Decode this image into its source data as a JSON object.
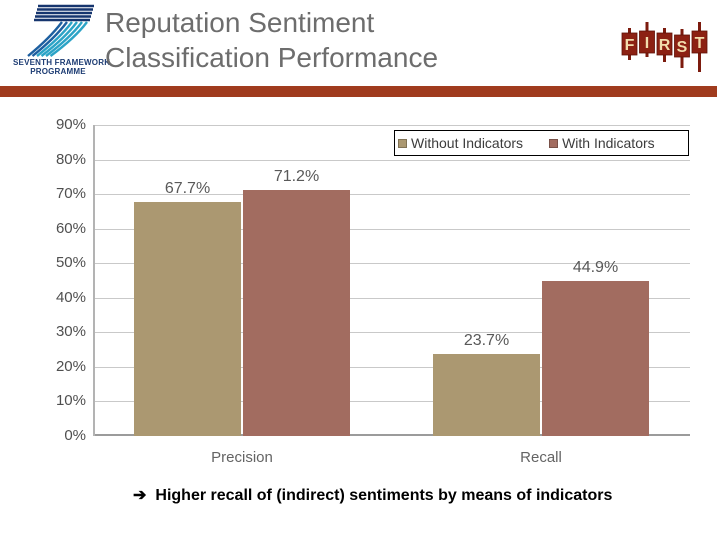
{
  "header": {
    "fp7_logo": {
      "caption_line1": "SEVENTH FRAMEWORK",
      "caption_line2": "PROGRAMME"
    },
    "title_line1": "Reputation Sentiment",
    "title_line2": "Classification Performance",
    "first_logo": {
      "letters": [
        "F",
        "I",
        "R",
        "S",
        "T"
      ]
    }
  },
  "colors": {
    "accent_bar": "#a03b1e",
    "series_without_indicators": "#ab9871",
    "series_with_indicators": "#a26c60"
  },
  "chart_data": {
    "type": "bar",
    "title": "",
    "xlabel": "",
    "ylabel": "",
    "categories": [
      "Precision",
      "Recall"
    ],
    "series": [
      {
        "name": "Without Indicators",
        "color": "#ab9871",
        "values": [
          67.7,
          23.7
        ],
        "labels": [
          "67.7%",
          "23.7%"
        ]
      },
      {
        "name": "With Indicators",
        "color": "#a26c60",
        "values": [
          71.2,
          44.9
        ],
        "labels": [
          "71.2%",
          "44.9%"
        ]
      }
    ],
    "ylim": [
      0,
      90
    ],
    "ytick_step": 10,
    "ytick_labels": [
      "90%",
      "80%",
      "70%",
      "60%",
      "50%",
      "40%",
      "30%",
      "20%",
      "10%",
      "0%"
    ],
    "grid": true,
    "legend_position": "top-right"
  },
  "footer": {
    "arrow": "➔",
    "text": "Higher recall of (indirect) sentiments by means of indicators"
  }
}
